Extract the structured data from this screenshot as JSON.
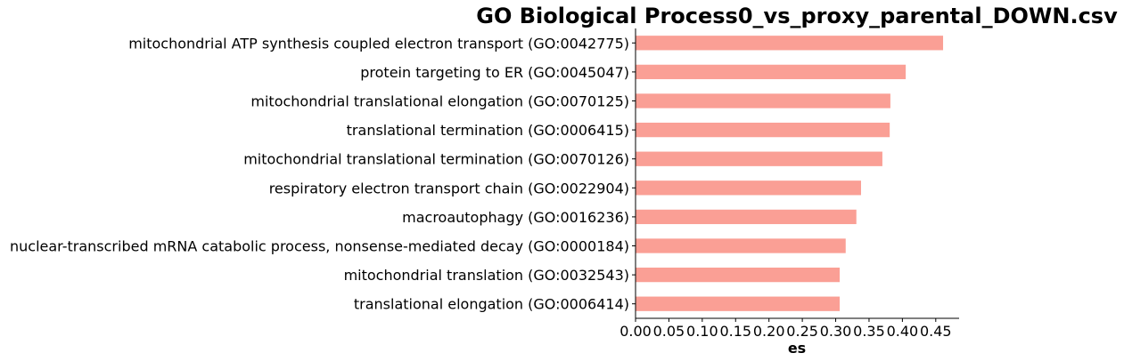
{
  "chart_data": {
    "type": "bar",
    "orientation": "horizontal",
    "title": "GO Biological Process0_vs_proxy_parental_DOWN.csv",
    "xlabel": "es",
    "ylabel": "",
    "categories": [
      "mitochondrial ATP synthesis coupled electron transport (GO:0042775)",
      "protein targeting to ER (GO:0045047)",
      "mitochondrial translational elongation (GO:0070125)",
      "translational termination (GO:0006415)",
      "mitochondrial translational termination (GO:0070126)",
      "respiratory electron transport chain (GO:0022904)",
      "macroautophagy (GO:0016236)",
      "nuclear-transcribed mRNA catabolic process, nonsense-mediated decay (GO:0000184)",
      "mitochondrial translation (GO:0032543)",
      "translational elongation (GO:0006414)"
    ],
    "values": [
      0.461,
      0.405,
      0.382,
      0.381,
      0.37,
      0.338,
      0.331,
      0.315,
      0.306,
      0.306
    ],
    "xlim": [
      0,
      0.485
    ],
    "xticks": [
      "0.00",
      "0.05",
      "0.10",
      "0.15",
      "0.20",
      "0.25",
      "0.30",
      "0.35",
      "0.40",
      "0.45"
    ],
    "bar_color": "#fa9f95",
    "grid": false,
    "legend": "none"
  }
}
